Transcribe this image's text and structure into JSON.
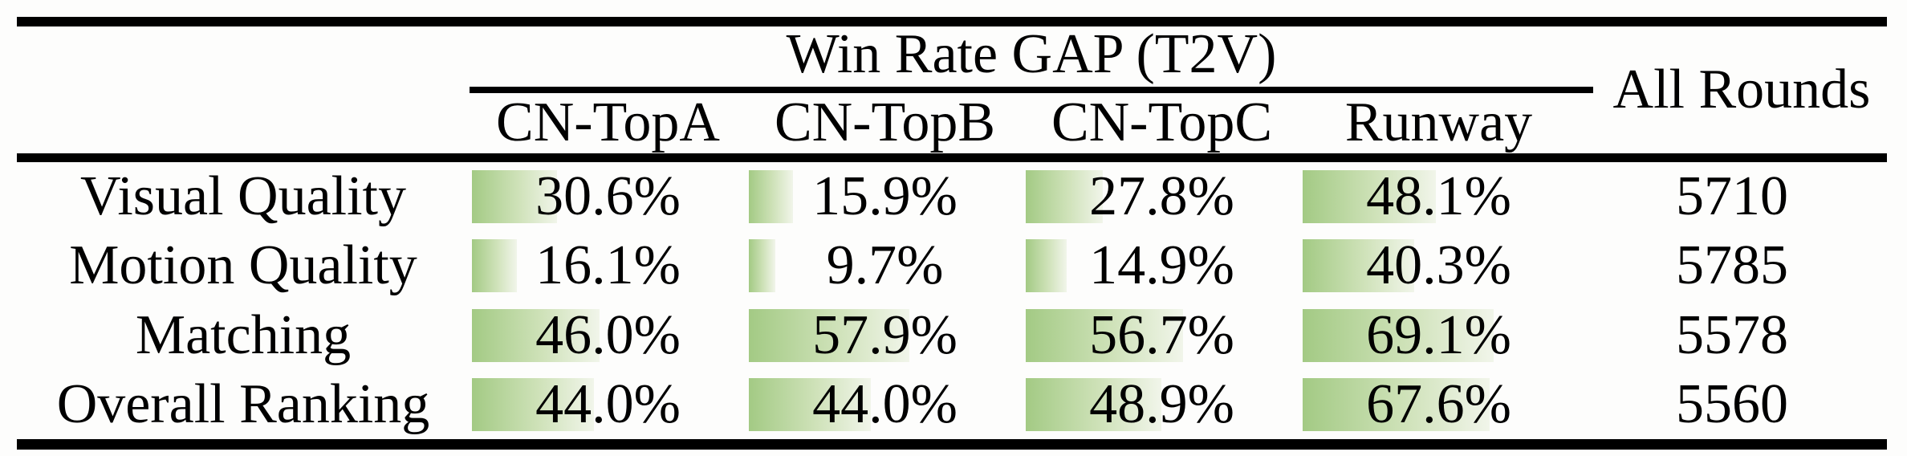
{
  "figure": {
    "type": "paper-table",
    "header": {
      "group_title": "Win Rate GAP (T2V)",
      "columns": [
        "CN-TopA",
        "CN-TopB",
        "CN-TopC",
        "Runway"
      ],
      "all_rounds_label": "All Rounds"
    },
    "rows": [
      {
        "label": "Visual Quality",
        "cells": [
          {
            "display": "30.6%",
            "pct": 30.6
          },
          {
            "display": "15.9%",
            "pct": 15.9
          },
          {
            "display": "27.8%",
            "pct": 27.8
          },
          {
            "display": "48.1%",
            "pct": 48.1
          }
        ],
        "all_rounds": "5710"
      },
      {
        "label": "Motion Quality",
        "cells": [
          {
            "display": "16.1%",
            "pct": 16.1
          },
          {
            "display": "9.7%",
            "pct": 9.7
          },
          {
            "display": "14.9%",
            "pct": 14.9
          },
          {
            "display": "40.3%",
            "pct": 40.3
          }
        ],
        "all_rounds": "5785"
      },
      {
        "label": "Matching",
        "cells": [
          {
            "display": "46.0%",
            "pct": 46.0
          },
          {
            "display": "57.9%",
            "pct": 57.9
          },
          {
            "display": "56.7%",
            "pct": 56.7
          },
          {
            "display": "69.1%",
            "pct": 69.1
          }
        ],
        "all_rounds": "5578"
      },
      {
        "label": "Overall Ranking",
        "cells": [
          {
            "display": "44.0%",
            "pct": 44.0
          },
          {
            "display": "44.0%",
            "pct": 44.0
          },
          {
            "display": "48.9%",
            "pct": 48.9
          },
          {
            "display": "67.6%",
            "pct": 67.6
          }
        ],
        "all_rounds": "5560"
      }
    ],
    "colors": {
      "bar_gradient_start": "#a3ca84",
      "bar_gradient_end": "#f1f5ea",
      "rule_color": "#000000",
      "text_color": "#000000"
    }
  },
  "chart_data": {
    "type": "table",
    "title": "Win Rate GAP (T2V)",
    "columns": [
      "CN-TopA",
      "CN-TopB",
      "CN-TopC",
      "Runway",
      "All Rounds"
    ],
    "row_labels": [
      "Visual Quality",
      "Motion Quality",
      "Matching",
      "Overall Ranking"
    ],
    "win_rate_gap_percent": {
      "Visual Quality": [
        30.6,
        15.9,
        27.8,
        48.1
      ],
      "Motion Quality": [
        16.1,
        9.7,
        14.9,
        40.3
      ],
      "Matching": [
        46.0,
        57.9,
        56.7,
        69.1
      ],
      "Overall Ranking": [
        44.0,
        44.0,
        48.9,
        67.6
      ]
    },
    "all_rounds": [
      5710,
      5785,
      5578,
      5560
    ],
    "notes": "Each percentage cell has a left-anchored green gradient bar whose width is proportional to the value (value% of cell width)."
  }
}
